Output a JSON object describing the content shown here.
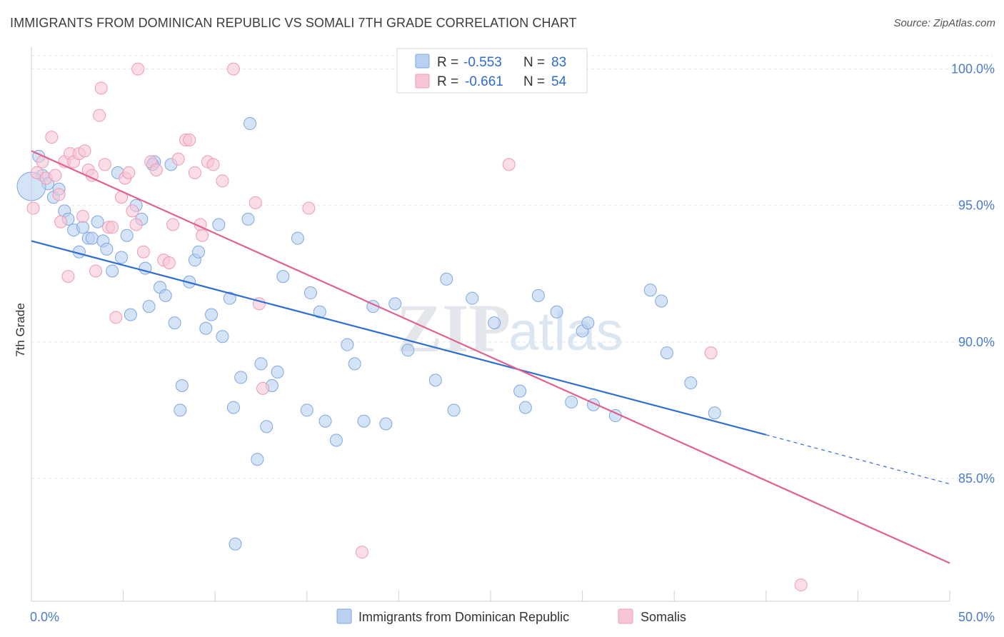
{
  "title": "IMMIGRANTS FROM DOMINICAN REPUBLIC VS SOMALI 7TH GRADE CORRELATION CHART",
  "source": "Source: ZipAtlas.com",
  "watermark": {
    "zip": "ZIP",
    "atlas": "atlas"
  },
  "stats": [
    {
      "r_label": "R =",
      "r_value": "-0.553",
      "n_label": "N =",
      "n_value": "83"
    },
    {
      "r_label": "R =",
      "r_value": "-0.661",
      "n_label": "N =",
      "n_value": "54"
    }
  ],
  "chart_data": {
    "type": "scatter",
    "xlabel": "",
    "ylabel": "7th Grade",
    "xlim": [
      0,
      50
    ],
    "ylim": [
      80.5,
      100.8
    ],
    "x_tick_labels": [
      {
        "value": 0,
        "label": "0.0%"
      },
      {
        "value": 50,
        "label": "50.0%"
      }
    ],
    "y_tick_labels": [
      {
        "value": 100,
        "label": "100.0%"
      },
      {
        "value": 95,
        "label": "95.0%"
      },
      {
        "value": 90,
        "label": "90.0%"
      },
      {
        "value": 85,
        "label": "85.0%"
      }
    ],
    "grid": true,
    "legend_position": "bottom-center",
    "series": [
      {
        "name": "Immigrants from Dominican Republic",
        "color": "#7fa7e0",
        "fill": "#b9d0f1",
        "line_color": "#2f6fcf",
        "trend": {
          "x0": 0,
          "y0": 93.7,
          "x1": 40,
          "y1": 86.6,
          "dash_to_x": 50,
          "dash_to_y": 84.8
        },
        "points": [
          [
            0.4,
            96.8
          ],
          [
            0.6,
            96.1
          ],
          [
            0.9,
            95.8
          ],
          [
            1.2,
            95.3
          ],
          [
            1.5,
            95.6
          ],
          [
            1.8,
            94.8
          ],
          [
            2.0,
            94.5
          ],
          [
            2.3,
            94.1
          ],
          [
            2.6,
            93.3
          ],
          [
            2.8,
            94.2
          ],
          [
            3.1,
            93.8
          ],
          [
            3.3,
            93.8
          ],
          [
            3.6,
            94.4
          ],
          [
            3.9,
            93.7
          ],
          [
            4.1,
            93.4
          ],
          [
            4.4,
            92.6
          ],
          [
            4.9,
            93.1
          ],
          [
            5.2,
            93.9
          ],
          [
            5.4,
            91.0
          ],
          [
            5.7,
            95.0
          ],
          [
            6.0,
            94.5
          ],
          [
            6.2,
            92.7
          ],
          [
            6.4,
            91.3
          ],
          [
            6.7,
            96.6
          ],
          [
            7.0,
            92.0
          ],
          [
            7.3,
            91.7
          ],
          [
            7.6,
            96.5
          ],
          [
            7.8,
            90.7
          ],
          [
            8.2,
            88.4
          ],
          [
            8.1,
            87.5
          ],
          [
            8.6,
            92.2
          ],
          [
            8.9,
            93.0
          ],
          [
            9.1,
            93.3
          ],
          [
            9.5,
            90.5
          ],
          [
            9.8,
            91.0
          ],
          [
            10.2,
            94.3
          ],
          [
            10.4,
            90.2
          ],
          [
            10.8,
            91.6
          ],
          [
            11.0,
            87.6
          ],
          [
            11.4,
            88.7
          ],
          [
            11.8,
            94.5
          ],
          [
            11.9,
            98.0
          ],
          [
            12.3,
            85.7
          ],
          [
            12.5,
            89.2
          ],
          [
            12.8,
            86.9
          ],
          [
            13.1,
            88.4
          ],
          [
            13.4,
            88.9
          ],
          [
            13.7,
            92.4
          ],
          [
            14.5,
            93.8
          ],
          [
            15.0,
            87.5
          ],
          [
            15.2,
            91.8
          ],
          [
            15.7,
            91.1
          ],
          [
            16.0,
            87.1
          ],
          [
            16.6,
            86.4
          ],
          [
            17.2,
            89.9
          ],
          [
            17.6,
            89.2
          ],
          [
            18.1,
            87.1
          ],
          [
            18.6,
            91.3
          ],
          [
            19.3,
            87.0
          ],
          [
            19.8,
            91.4
          ],
          [
            20.5,
            89.7
          ],
          [
            22.0,
            88.6
          ],
          [
            22.6,
            92.3
          ],
          [
            23.0,
            87.5
          ],
          [
            24.0,
            91.6
          ],
          [
            25.2,
            90.7
          ],
          [
            26.6,
            88.2
          ],
          [
            26.9,
            87.6
          ],
          [
            27.6,
            91.7
          ],
          [
            28.6,
            91.1
          ],
          [
            29.4,
            87.8
          ],
          [
            30.0,
            90.4
          ],
          [
            30.3,
            90.7
          ],
          [
            30.6,
            87.7
          ],
          [
            31.8,
            87.3
          ],
          [
            33.7,
            91.9
          ],
          [
            34.3,
            91.5
          ],
          [
            34.6,
            89.6
          ],
          [
            35.9,
            88.5
          ],
          [
            37.2,
            87.4
          ],
          [
            11.1,
            82.6
          ],
          [
            6.6,
            96.5
          ],
          [
            4.7,
            96.2
          ]
        ],
        "big_point": [
          0.0,
          95.7
        ]
      },
      {
        "name": "Somalis",
        "color": "#ee9bb6",
        "fill": "#f7c6d6",
        "line_color": "#e0608e",
        "trend": {
          "x0": 0,
          "y0": 97.0,
          "x1": 50,
          "y1": 81.9
        },
        "points": [
          [
            0.3,
            96.2
          ],
          [
            0.6,
            96.6
          ],
          [
            0.8,
            96.0
          ],
          [
            1.1,
            97.5
          ],
          [
            1.3,
            96.1
          ],
          [
            1.5,
            95.4
          ],
          [
            1.6,
            94.4
          ],
          [
            1.8,
            96.6
          ],
          [
            2.0,
            92.4
          ],
          [
            2.1,
            96.9
          ],
          [
            2.3,
            96.6
          ],
          [
            2.6,
            96.9
          ],
          [
            2.8,
            94.6
          ],
          [
            2.9,
            97.0
          ],
          [
            3.1,
            96.3
          ],
          [
            3.3,
            96.1
          ],
          [
            3.5,
            92.6
          ],
          [
            3.7,
            98.3
          ],
          [
            3.8,
            99.3
          ],
          [
            4.0,
            96.5
          ],
          [
            4.2,
            94.2
          ],
          [
            4.4,
            94.2
          ],
          [
            4.6,
            90.9
          ],
          [
            4.9,
            95.3
          ],
          [
            5.1,
            96.0
          ],
          [
            5.3,
            96.2
          ],
          [
            5.5,
            94.8
          ],
          [
            5.7,
            94.3
          ],
          [
            5.8,
            100.0
          ],
          [
            6.1,
            93.3
          ],
          [
            6.5,
            96.6
          ],
          [
            6.8,
            96.3
          ],
          [
            7.2,
            93.0
          ],
          [
            7.5,
            92.9
          ],
          [
            7.7,
            94.3
          ],
          [
            8.0,
            96.7
          ],
          [
            8.4,
            97.4
          ],
          [
            8.6,
            97.4
          ],
          [
            8.9,
            96.2
          ],
          [
            9.2,
            94.3
          ],
          [
            9.3,
            93.9
          ],
          [
            9.6,
            96.6
          ],
          [
            9.9,
            96.5
          ],
          [
            10.4,
            95.9
          ],
          [
            11.0,
            100.0
          ],
          [
            12.2,
            95.1
          ],
          [
            12.4,
            91.4
          ],
          [
            12.6,
            88.3
          ],
          [
            15.1,
            94.9
          ],
          [
            18.0,
            82.3
          ],
          [
            26.0,
            96.5
          ],
          [
            37.0,
            89.6
          ],
          [
            41.9,
            81.1
          ],
          [
            0.1,
            94.9
          ]
        ]
      }
    ]
  }
}
